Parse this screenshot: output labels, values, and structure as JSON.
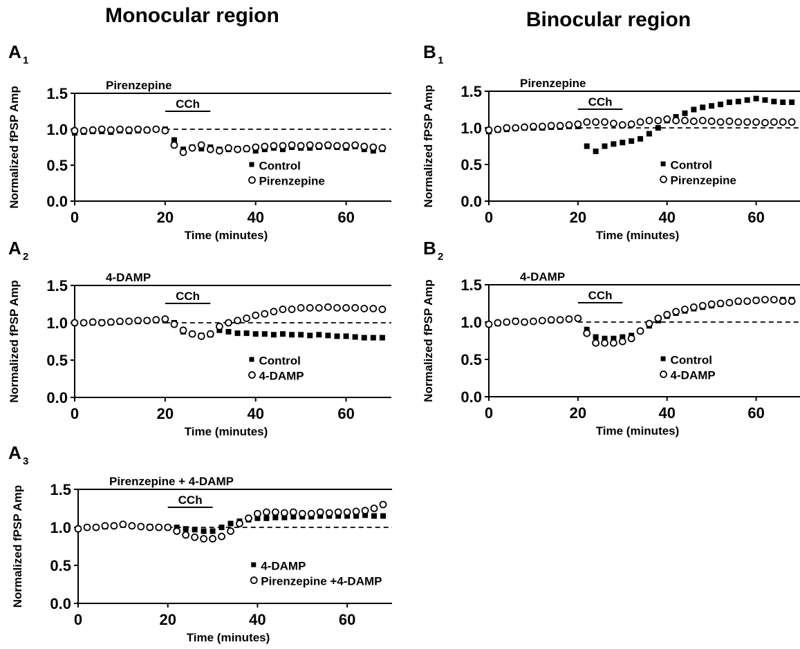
{
  "column_titles": [
    "Monocular region",
    "Binocular region"
  ],
  "chart_data": [
    {
      "type": "scatter",
      "panel_label": "A",
      "panel_index": "1",
      "drug_label": "Pirenzepine",
      "stimulus_label": "CCh",
      "stimulus_window": [
        20,
        30
      ],
      "reference_line": 1.0,
      "x_label": "Time (minutes)",
      "y_label": "Normalized fPSP Amp",
      "xlim": [
        0,
        70
      ],
      "xticks": [
        0,
        20,
        40,
        60
      ],
      "ylim": [
        0,
        1.5
      ],
      "yticks": [
        {
          "value": 0,
          "label": "0.0"
        },
        {
          "value": 0.5,
          "label": "0.5"
        },
        {
          "value": 1,
          "label": "1.0"
        },
        {
          "value": 1.5,
          "label": "1.5"
        }
      ],
      "x": [
        0,
        2,
        4,
        6,
        8,
        10,
        12,
        14,
        16,
        18,
        20,
        22,
        24,
        26,
        28,
        30,
        32,
        34,
        36,
        38,
        40,
        42,
        44,
        46,
        48,
        50,
        52,
        54,
        56,
        58,
        60,
        62,
        64,
        66,
        68
      ],
      "series": [
        {
          "name": "Control",
          "marker": "square",
          "color": "#000000",
          "values": [
            0.95,
            0.96,
            0.97,
            0.97,
            0.96,
            0.98,
            0.97,
            0.98,
            0.98,
            1.0,
            1.0,
            0.85,
            0.72,
            0.75,
            0.73,
            0.75,
            0.72,
            0.72,
            0.73,
            0.72,
            0.7,
            0.72,
            0.74,
            0.72,
            0.75,
            0.74,
            0.74,
            0.75,
            0.76,
            0.75,
            0.74,
            0.76,
            0.72,
            0.7,
            0.72
          ]
        },
        {
          "name": "Pirenzepine",
          "marker": "circle",
          "color": "#000000",
          "values": [
            0.98,
            0.98,
            0.99,
            1.0,
            0.99,
            1.0,
            0.99,
            1.0,
            0.99,
            1.0,
            0.98,
            0.78,
            0.68,
            0.74,
            0.78,
            0.72,
            0.7,
            0.74,
            0.72,
            0.73,
            0.75,
            0.76,
            0.77,
            0.77,
            0.78,
            0.77,
            0.78,
            0.77,
            0.78,
            0.77,
            0.77,
            0.78,
            0.76,
            0.75,
            0.74
          ]
        }
      ]
    },
    {
      "type": "scatter",
      "panel_label": "A",
      "panel_index": "2",
      "drug_label": "4-DAMP",
      "stimulus_label": "CCh",
      "stimulus_window": [
        20,
        30
      ],
      "reference_line": 1.0,
      "x_label": "Time (minutes)",
      "y_label": "Normalized fPSP Amp",
      "xlim": [
        0,
        70
      ],
      "xticks": [
        0,
        20,
        40,
        60
      ],
      "ylim": [
        0,
        1.5
      ],
      "yticks": [
        {
          "value": 0,
          "label": "0.0"
        },
        {
          "value": 0.5,
          "label": "0.5"
        },
        {
          "value": 1,
          "label": "1.0"
        },
        {
          "value": 1.5,
          "label": "1.5"
        }
      ],
      "x": [
        0,
        2,
        4,
        6,
        8,
        10,
        12,
        14,
        16,
        18,
        20,
        22,
        24,
        26,
        28,
        30,
        32,
        34,
        36,
        38,
        40,
        42,
        44,
        46,
        48,
        50,
        52,
        54,
        56,
        58,
        60,
        62,
        64,
        66,
        68
      ],
      "series": [
        {
          "name": "Control",
          "marker": "square",
          "color": "#000000",
          "values": [
            1.0,
            1.0,
            1.0,
            1.01,
            1.0,
            1.01,
            1.02,
            1.02,
            1.03,
            1.03,
            1.03,
            1.0,
            0.88,
            0.85,
            0.83,
            0.84,
            0.9,
            0.88,
            0.86,
            0.86,
            0.85,
            0.85,
            0.84,
            0.85,
            0.84,
            0.84,
            0.83,
            0.84,
            0.83,
            0.82,
            0.82,
            0.81,
            0.8,
            0.8,
            0.8
          ]
        },
        {
          "name": "4-DAMP",
          "marker": "circle",
          "color": "#000000",
          "values": [
            1.0,
            1.0,
            1.01,
            1.0,
            1.01,
            1.02,
            1.02,
            1.03,
            1.03,
            1.04,
            1.05,
            0.98,
            0.9,
            0.85,
            0.82,
            0.85,
            0.95,
            1.0,
            1.03,
            1.06,
            1.1,
            1.12,
            1.15,
            1.18,
            1.18,
            1.2,
            1.2,
            1.2,
            1.21,
            1.2,
            1.2,
            1.2,
            1.19,
            1.19,
            1.18
          ]
        }
      ]
    },
    {
      "type": "scatter",
      "panel_label": "A",
      "panel_index": "3",
      "drug_label": "Pirenzepine + 4-DAMP",
      "stimulus_label": "CCh",
      "stimulus_window": [
        20,
        30
      ],
      "reference_line": 1.0,
      "x_label": "Time (minutes)",
      "y_label": "Normalized fPSP Amp",
      "xlim": [
        0,
        70
      ],
      "xticks": [
        0,
        20,
        40,
        60
      ],
      "ylim": [
        0,
        1.5
      ],
      "yticks": [
        {
          "value": 0,
          "label": "0.0"
        },
        {
          "value": 0.5,
          "label": "0.5"
        },
        {
          "value": 1,
          "label": "1.0"
        },
        {
          "value": 1.5,
          "label": "1.5"
        }
      ],
      "x": [
        0,
        2,
        4,
        6,
        8,
        10,
        12,
        14,
        16,
        18,
        20,
        22,
        24,
        26,
        28,
        30,
        32,
        34,
        36,
        38,
        40,
        42,
        44,
        46,
        48,
        50,
        52,
        54,
        56,
        58,
        60,
        62,
        64,
        66,
        68
      ],
      "series": [
        {
          "name": "4-DAMP",
          "marker": "square",
          "color": "#000000",
          "values": [
            0.98,
            1.0,
            1.0,
            1.01,
            1.02,
            1.03,
            1.02,
            1.01,
            1.01,
            1.0,
            1.0,
            1.0,
            0.98,
            0.97,
            0.95,
            0.95,
            1.0,
            1.05,
            1.08,
            1.1,
            1.12,
            1.12,
            1.13,
            1.13,
            1.14,
            1.14,
            1.14,
            1.15,
            1.15,
            1.15,
            1.15,
            1.15,
            1.16,
            1.15,
            1.15
          ]
        },
        {
          "name": "Pirenzepine +4-DAMP",
          "marker": "circle",
          "color": "#000000",
          "values": [
            0.98,
            1.0,
            1.0,
            1.02,
            1.02,
            1.04,
            1.02,
            1.01,
            1.0,
            1.0,
            1.0,
            0.95,
            0.9,
            0.87,
            0.85,
            0.85,
            0.88,
            0.95,
            1.05,
            1.12,
            1.18,
            1.2,
            1.2,
            1.19,
            1.2,
            1.18,
            1.18,
            1.2,
            1.19,
            1.2,
            1.2,
            1.21,
            1.22,
            1.25,
            1.3
          ]
        }
      ]
    },
    {
      "type": "scatter",
      "panel_label": "B",
      "panel_index": "1",
      "drug_label": "Pirenzepine",
      "stimulus_label": "CCh",
      "stimulus_window": [
        20,
        30
      ],
      "reference_line": 1.0,
      "x_label": "Time (minutes)",
      "y_label": "Normalized fPSP Amp",
      "xlim": [
        0,
        70
      ],
      "xticks": [
        0,
        20,
        40,
        60
      ],
      "ylim": [
        0,
        1.5
      ],
      "yticks": [
        {
          "value": 0,
          "label": "0.0"
        },
        {
          "value": 0.5,
          "label": "0.5"
        },
        {
          "value": 1,
          "label": "1.0"
        },
        {
          "value": 1.5,
          "label": "1.5"
        }
      ],
      "x": [
        0,
        2,
        4,
        6,
        8,
        10,
        12,
        14,
        16,
        18,
        20,
        22,
        24,
        26,
        28,
        30,
        32,
        34,
        36,
        38,
        40,
        42,
        44,
        46,
        48,
        50,
        52,
        54,
        56,
        58,
        60,
        62,
        64,
        66,
        68
      ],
      "series": [
        {
          "name": "Control",
          "marker": "square",
          "color": "#000000",
          "values": [
            0.95,
            0.97,
            0.98,
            0.99,
            1.0,
            1.0,
            1.0,
            1.01,
            1.01,
            1.02,
            1.02,
            0.75,
            0.68,
            0.75,
            0.78,
            0.8,
            0.82,
            0.85,
            0.92,
            1.0,
            1.1,
            1.15,
            1.2,
            1.25,
            1.28,
            1.3,
            1.32,
            1.35,
            1.36,
            1.38,
            1.4,
            1.38,
            1.36,
            1.35,
            1.35
          ]
        },
        {
          "name": "Pirenzepine",
          "marker": "circle",
          "color": "#000000",
          "values": [
            0.97,
            0.98,
            1.0,
            1.0,
            1.01,
            1.02,
            1.02,
            1.03,
            1.03,
            1.04,
            1.05,
            1.08,
            1.08,
            1.08,
            1.06,
            1.04,
            1.05,
            1.08,
            1.1,
            1.1,
            1.12,
            1.1,
            1.1,
            1.09,
            1.1,
            1.09,
            1.08,
            1.09,
            1.08,
            1.08,
            1.08,
            1.07,
            1.08,
            1.08,
            1.08
          ]
        }
      ]
    },
    {
      "type": "scatter",
      "panel_label": "B",
      "panel_index": "2",
      "drug_label": "4-DAMP",
      "stimulus_label": "CCh",
      "stimulus_window": [
        20,
        30
      ],
      "reference_line": 1.0,
      "x_label": "Time (minutes)",
      "y_label": "Normalized fPSP Amp",
      "xlim": [
        0,
        70
      ],
      "xticks": [
        0,
        20,
        40,
        60
      ],
      "ylim": [
        0,
        1.5
      ],
      "yticks": [
        {
          "value": 0,
          "label": "0.0"
        },
        {
          "value": 0.5,
          "label": "0.5"
        },
        {
          "value": 1,
          "label": "1.0"
        },
        {
          "value": 1.5,
          "label": "1.5"
        }
      ],
      "x": [
        0,
        2,
        4,
        6,
        8,
        10,
        12,
        14,
        16,
        18,
        20,
        22,
        24,
        26,
        28,
        30,
        32,
        34,
        36,
        38,
        40,
        42,
        44,
        46,
        48,
        50,
        52,
        54,
        56,
        58,
        60,
        62,
        64,
        66,
        68
      ],
      "series": [
        {
          "name": "Control",
          "marker": "square",
          "color": "#000000",
          "values": [
            0.97,
            0.98,
            1.0,
            1.02,
            1.0,
            1.01,
            1.02,
            1.02,
            1.03,
            1.04,
            1.05,
            0.9,
            0.8,
            0.78,
            0.78,
            0.8,
            0.82,
            0.88,
            0.95,
            1.02,
            1.08,
            1.12,
            1.15,
            1.18,
            1.2,
            1.22,
            1.24,
            1.26,
            1.27,
            1.28,
            1.3,
            1.3,
            1.3,
            1.3,
            1.3
          ]
        },
        {
          "name": "4-DAMP",
          "marker": "circle",
          "color": "#000000",
          "values": [
            0.97,
            0.99,
            1.0,
            1.01,
            1.0,
            1.01,
            1.02,
            1.03,
            1.03,
            1.04,
            1.05,
            0.85,
            0.72,
            0.72,
            0.72,
            0.74,
            0.78,
            0.88,
            0.98,
            1.05,
            1.1,
            1.14,
            1.17,
            1.2,
            1.22,
            1.24,
            1.25,
            1.26,
            1.28,
            1.28,
            1.29,
            1.3,
            1.3,
            1.28,
            1.28
          ]
        }
      ]
    }
  ]
}
